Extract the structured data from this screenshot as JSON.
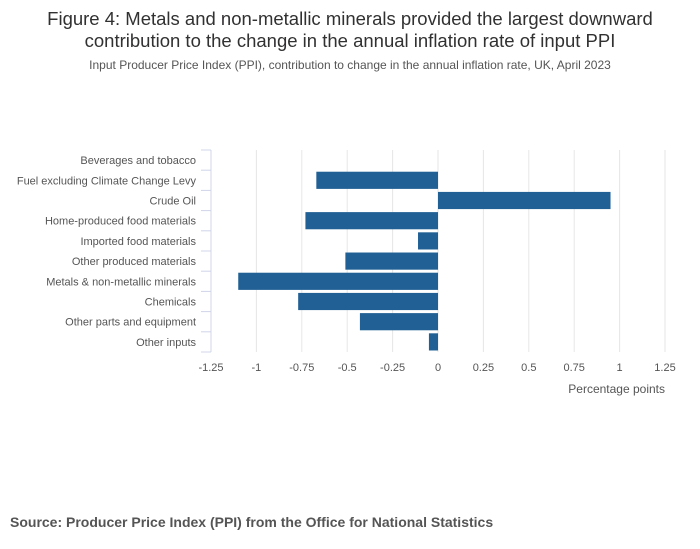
{
  "chart_data": {
    "type": "bar",
    "orientation": "horizontal",
    "title": "Figure 4: Metals and non-metallic minerals provided the largest downward contribution to the change in the annual inflation rate of input PPI",
    "subtitle": "Input Producer Price Index (PPI), contribution to change in the annual inflation rate, UK, April 2023",
    "categories": [
      "Beverages and tobacco",
      "Fuel excluding Climate Change Levy",
      "Crude Oil",
      "Home-produced food materials",
      "Imported food materials",
      "Other produced materials",
      "Metals & non-metallic minerals",
      "Chemicals",
      "Other parts and equipment",
      "Other inputs"
    ],
    "values": [
      0.0,
      -0.67,
      0.95,
      -0.73,
      -0.11,
      -0.51,
      -1.1,
      -0.77,
      -0.43,
      -0.05
    ],
    "xlim": [
      -1.25,
      1.25
    ],
    "xticks": [
      "-1.25",
      "-1",
      "-0.75",
      "-0.5",
      "-0.25",
      "0",
      "0.25",
      "0.5",
      "0.75",
      "1",
      "1.25"
    ],
    "xlabel": "Percentage points",
    "ylabel": "",
    "grid": true,
    "bar_color": "#206095"
  },
  "footer": {
    "source": "Source: Producer Price Index (PPI) from the Office for National Statistics"
  }
}
